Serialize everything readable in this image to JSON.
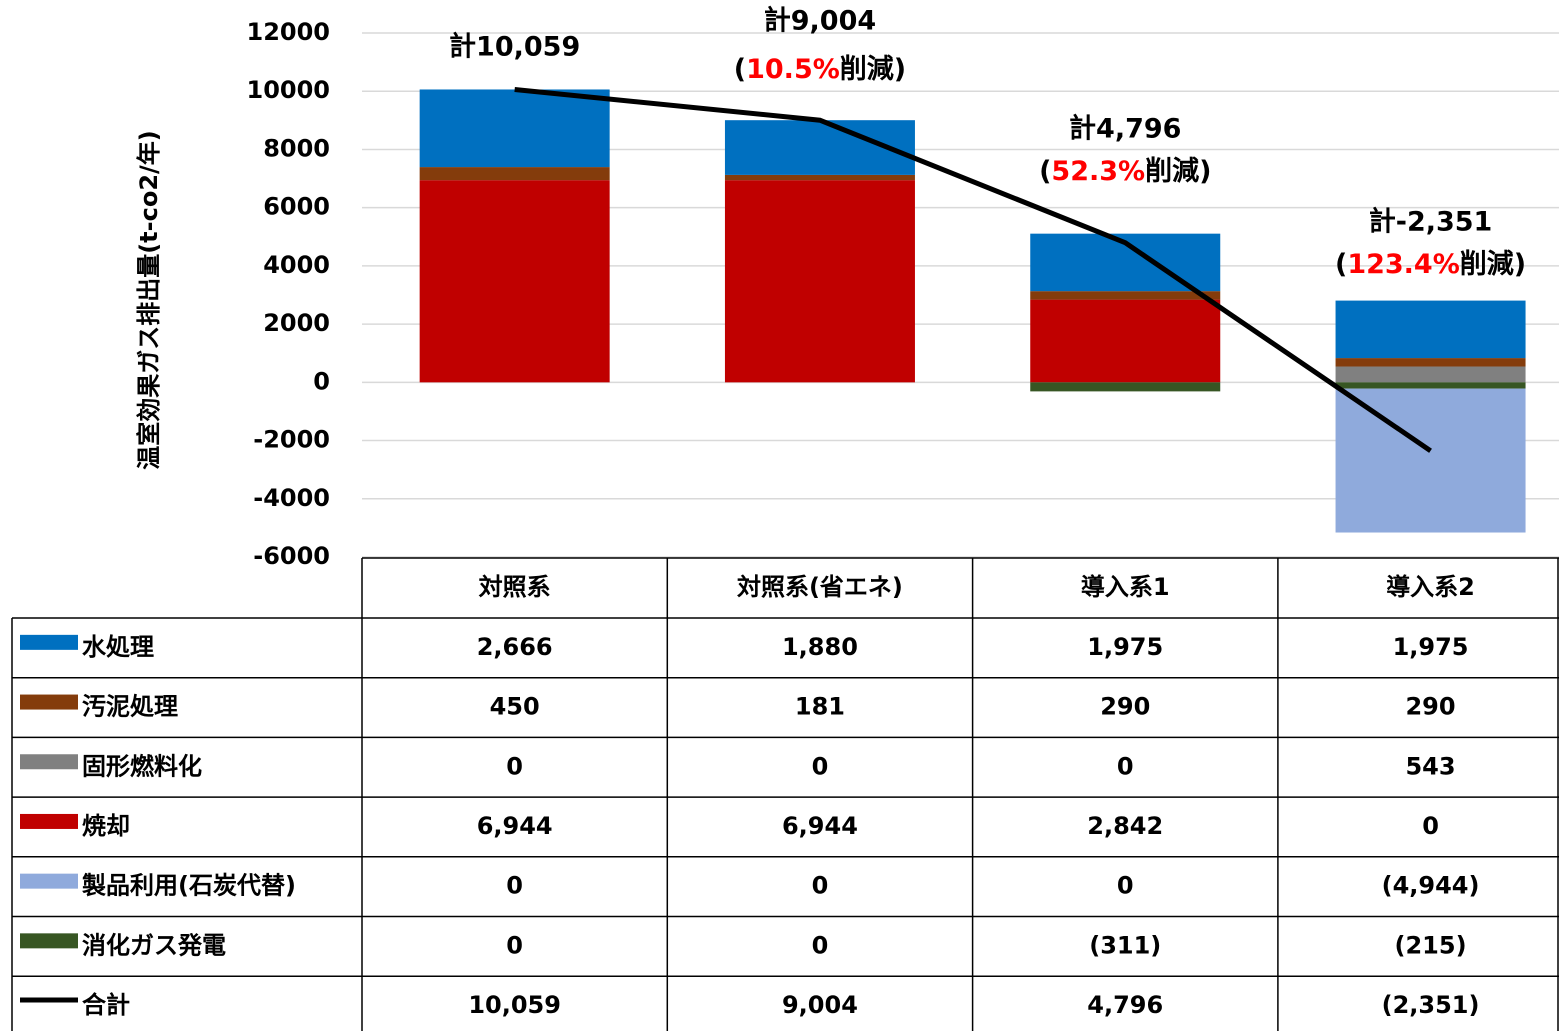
{
  "chart_data": {
    "type": "stacked-bar",
    "y_label": "温室効果ガス排出量(t-co2/年)",
    "categories": [
      "対照系",
      "対照系(省エネ)",
      "導入系1",
      "導入系2"
    ],
    "series": [
      {
        "name": "水処理",
        "color": "#0070c0",
        "values": [
          2666,
          1880,
          1975,
          1975
        ],
        "value_labels": [
          "2,666",
          "1,880",
          "1,975",
          "1,975"
        ]
      },
      {
        "name": "汚泥処理",
        "color": "#843c0c",
        "values": [
          450,
          181,
          290,
          290
        ],
        "value_labels": [
          "450",
          "181",
          "290",
          "290"
        ]
      },
      {
        "name": "固形燃料化",
        "color": "#808080",
        "values": [
          0,
          0,
          0,
          543
        ],
        "value_labels": [
          "0",
          "0",
          "0",
          "543"
        ]
      },
      {
        "name": "焼却",
        "color": "#c00000",
        "values": [
          6944,
          6944,
          2842,
          0
        ],
        "value_labels": [
          "6,944",
          "6,944",
          "2,842",
          "0"
        ]
      },
      {
        "name": "製品利用(石炭代替)",
        "color": "#8faadc",
        "values": [
          0,
          0,
          0,
          -4944
        ],
        "value_labels": [
          "0",
          "0",
          "0",
          "(4,944)"
        ]
      },
      {
        "name": "消化ガス発電",
        "color": "#375623",
        "values": [
          0,
          0,
          -311,
          -215
        ],
        "value_labels": [
          "0",
          "0",
          "(311)",
          "(215)"
        ]
      },
      {
        "name": "合計",
        "color": "#000000",
        "type": "line",
        "values": [
          10059,
          9004,
          4796,
          -2351
        ],
        "value_labels": [
          "10,059",
          "9,004",
          "4,796",
          "(2,351)"
        ]
      }
    ],
    "annotations": [
      {
        "total": "計10,059"
      },
      {
        "total": "計9,004",
        "reduction": [
          "(",
          "10.5%",
          "削減)"
        ]
      },
      {
        "total": "計4,796",
        "reduction": [
          "(",
          "52.3%",
          "削減)"
        ]
      },
      {
        "total": "計-2,351",
        "reduction": [
          "(",
          "123.4%",
          "削減)"
        ]
      }
    ],
    "highlight_color": "#ff0000",
    "ylim": [
      -6000,
      12000
    ],
    "yticks": [
      -6000,
      -4000,
      -2000,
      0,
      2000,
      4000,
      6000,
      8000,
      10000,
      12000
    ],
    "grid": true
  }
}
